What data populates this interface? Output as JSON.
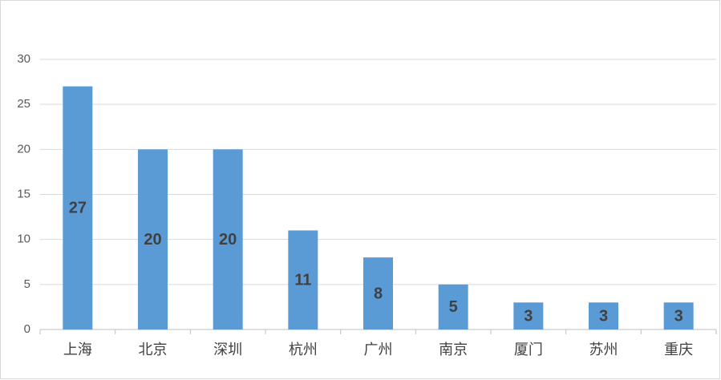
{
  "chart_data": {
    "type": "bar",
    "categories": [
      "上海",
      "北京",
      "深圳",
      "杭州",
      "广州",
      "南京",
      "厦门",
      "苏州",
      "重庆"
    ],
    "values": [
      27,
      20,
      20,
      11,
      8,
      5,
      3,
      3,
      3
    ],
    "color": "#5b9bd5",
    "ylim": [
      0,
      30
    ],
    "yticks": [
      0,
      5,
      10,
      15,
      20,
      25,
      30
    ],
    "grid": true
  }
}
